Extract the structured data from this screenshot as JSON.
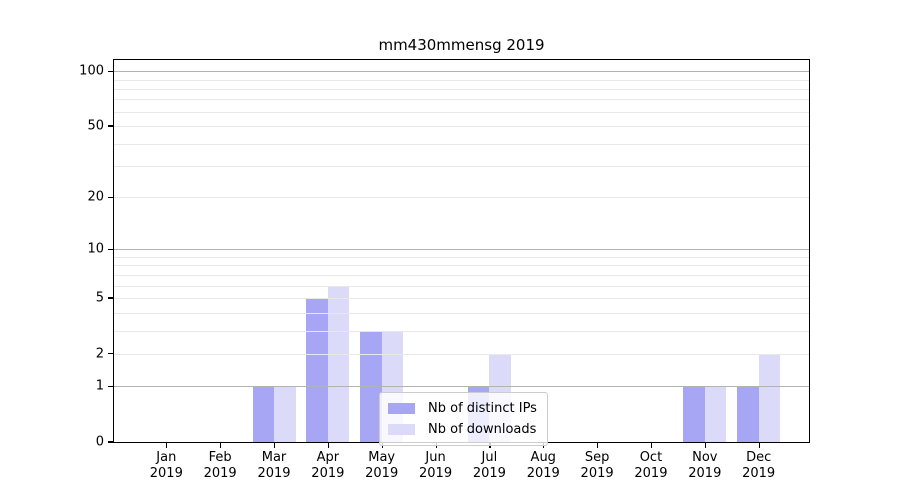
{
  "chart_data": {
    "type": "bar",
    "title": "mm430mmensg 2019",
    "categories": [
      "Jan 2019",
      "Feb 2019",
      "Mar 2019",
      "Apr 2019",
      "May 2019",
      "Jun 2019",
      "Jul 2019",
      "Aug 2019",
      "Sep 2019",
      "Oct 2019",
      "Nov 2019",
      "Dec 2019"
    ],
    "series": [
      {
        "name": "Nb of distinct IPs",
        "color": "#a6a6f4",
        "values": [
          0,
          0,
          1,
          5,
          3,
          0,
          1,
          0,
          0,
          0,
          1,
          1
        ]
      },
      {
        "name": "Nb of downloads",
        "color": "#dbdbf9",
        "values": [
          0,
          0,
          1,
          6,
          3,
          0,
          2,
          0,
          0,
          0,
          1,
          2
        ]
      }
    ],
    "xlabel": "",
    "ylabel": "",
    "yscale": "log1p",
    "ylim": [
      0,
      115
    ],
    "yticks": [
      100,
      50,
      20,
      10,
      5,
      2,
      1,
      0
    ],
    "grid": {
      "major": [
        1,
        10,
        100
      ],
      "minor": [
        2,
        3,
        4,
        5,
        6,
        7,
        8,
        9,
        20,
        30,
        40,
        50,
        60,
        70,
        80,
        90
      ],
      "major_color": "#b3b3b3",
      "minor_color": "#e8e8e8"
    },
    "axis_color": "#000000",
    "legend_position": "lower-center"
  }
}
